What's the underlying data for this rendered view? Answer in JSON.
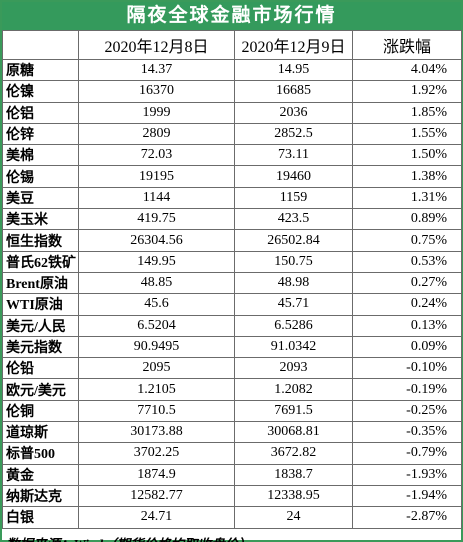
{
  "header": {
    "title": "隔夜全球金融市场行情"
  },
  "table": {
    "columns": [
      "",
      "2020年12月8日",
      "2020年12月9日",
      "涨跌幅"
    ],
    "rows": [
      [
        "原糖",
        "14.37",
        "14.95",
        "4.04%"
      ],
      [
        "伦镍",
        "16370",
        "16685",
        "1.92%"
      ],
      [
        "伦铝",
        "1999",
        "2036",
        "1.85%"
      ],
      [
        "伦锌",
        "2809",
        "2852.5",
        "1.55%"
      ],
      [
        "美棉",
        "72.03",
        "73.11",
        "1.50%"
      ],
      [
        "伦锡",
        "19195",
        "19460",
        "1.38%"
      ],
      [
        "美豆",
        "1144",
        "1159",
        "1.31%"
      ],
      [
        "美玉米",
        "419.75",
        "423.5",
        "0.89%"
      ],
      [
        "恒生指数",
        "26304.56",
        "26502.84",
        "0.75%"
      ],
      [
        "普氏62铁矿",
        "149.95",
        "150.75",
        "0.53%"
      ],
      [
        "Brent原油",
        "48.85",
        "48.98",
        "0.27%"
      ],
      [
        "WTI原油",
        "45.6",
        "45.71",
        "0.24%"
      ],
      [
        "美元/人民",
        "6.5204",
        "6.5286",
        "0.13%"
      ],
      [
        "美元指数",
        "90.9495",
        "91.0342",
        "0.09%"
      ],
      [
        "伦铅",
        "2095",
        "2093",
        "-0.10%"
      ],
      [
        "欧元/美元",
        "1.2105",
        "1.2082",
        "-0.19%"
      ],
      [
        "伦铜",
        "7710.5",
        "7691.5",
        "-0.25%"
      ],
      [
        "道琼斯",
        "30173.88",
        "30068.81",
        "-0.35%"
      ],
      [
        "标普500",
        "3702.25",
        "3672.82",
        "-0.79%"
      ],
      [
        "黄金",
        "1874.9",
        "1838.7",
        "-1.93%"
      ],
      [
        "纳斯达克",
        "12582.77",
        "12338.95",
        "-1.94%"
      ],
      [
        "白银",
        "24.71",
        "24",
        "-2.87%"
      ]
    ]
  },
  "footer": {
    "source": "数据来源：Wind（期货价格均取收盘价）"
  }
}
